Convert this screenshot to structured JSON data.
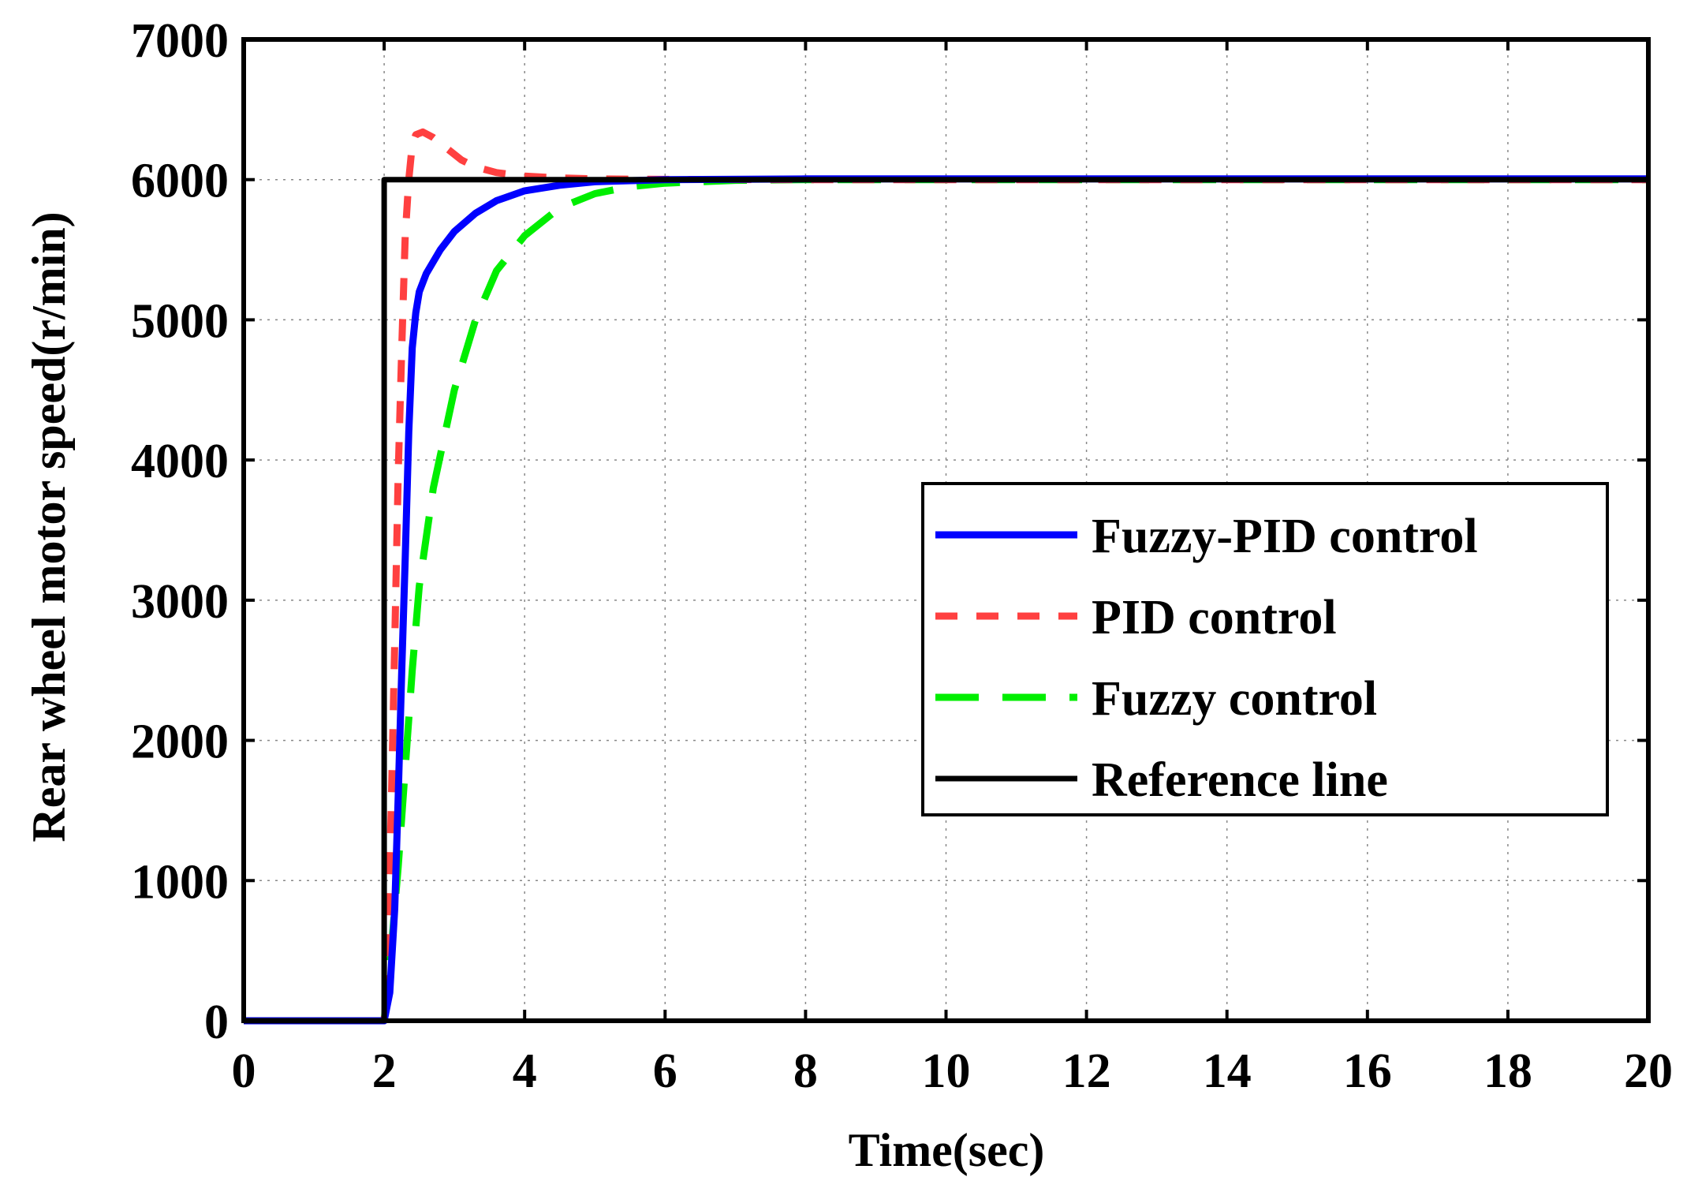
{
  "chart_data": {
    "type": "line",
    "title": "",
    "xlabel": "Time(sec)",
    "ylabel": "Rear wheel motor speed(r/min)",
    "xlim": [
      0,
      20
    ],
    "ylim": [
      0,
      7000
    ],
    "xticks": [
      0,
      2,
      4,
      6,
      8,
      10,
      12,
      14,
      16,
      18,
      20
    ],
    "yticks": [
      0,
      1000,
      2000,
      3000,
      4000,
      5000,
      6000,
      7000
    ],
    "grid": true,
    "legend_position": "center-right",
    "series": [
      {
        "name": "Fuzzy-PID control",
        "color": "#0000ff",
        "style": "solid",
        "x": [
          0,
          2.0,
          2.08,
          2.15,
          2.2,
          2.25,
          2.3,
          2.35,
          2.4,
          2.45,
          2.5,
          2.6,
          2.8,
          3.0,
          3.3,
          3.6,
          4.0,
          4.5,
          5.0,
          6.0,
          8.0,
          12.0,
          20.0
        ],
        "y": [
          0,
          0,
          200,
          800,
          1600,
          2500,
          3300,
          4200,
          4800,
          5050,
          5200,
          5330,
          5500,
          5630,
          5760,
          5850,
          5920,
          5960,
          5985,
          6000,
          6005,
          6005,
          6005
        ]
      },
      {
        "name": "PID control",
        "color": "#ff4040",
        "style": "dashed",
        "x": [
          0,
          2.0,
          2.05,
          2.1,
          2.15,
          2.2,
          2.25,
          2.3,
          2.35,
          2.4,
          2.45,
          2.55,
          2.7,
          2.9,
          3.1,
          3.3,
          3.6,
          4.0,
          4.5,
          5.0,
          6.0,
          8.0,
          20.0
        ],
        "y": [
          0,
          0,
          500,
          1500,
          2700,
          3900,
          4800,
          5600,
          6000,
          6250,
          6320,
          6340,
          6300,
          6220,
          6140,
          6090,
          6050,
          6025,
          6012,
          6005,
          6002,
          6000,
          6000
        ]
      },
      {
        "name": "Fuzzy control",
        "color": "#00ee00",
        "style": "dashed",
        "x": [
          0,
          2.0,
          2.1,
          2.2,
          2.3,
          2.4,
          2.5,
          2.7,
          3.0,
          3.3,
          3.6,
          4.0,
          4.5,
          5.0,
          5.5,
          6.0,
          7.0,
          8.0,
          20.0
        ],
        "y": [
          0,
          0,
          500,
          1100,
          1800,
          2500,
          3100,
          3800,
          4500,
          5000,
          5350,
          5600,
          5800,
          5900,
          5950,
          5975,
          5995,
          6000,
          6000
        ]
      },
      {
        "name": "Reference line",
        "color": "#000000",
        "style": "solid",
        "x": [
          0,
          2,
          2,
          20
        ],
        "y": [
          0,
          0,
          6000,
          6000
        ]
      }
    ]
  }
}
